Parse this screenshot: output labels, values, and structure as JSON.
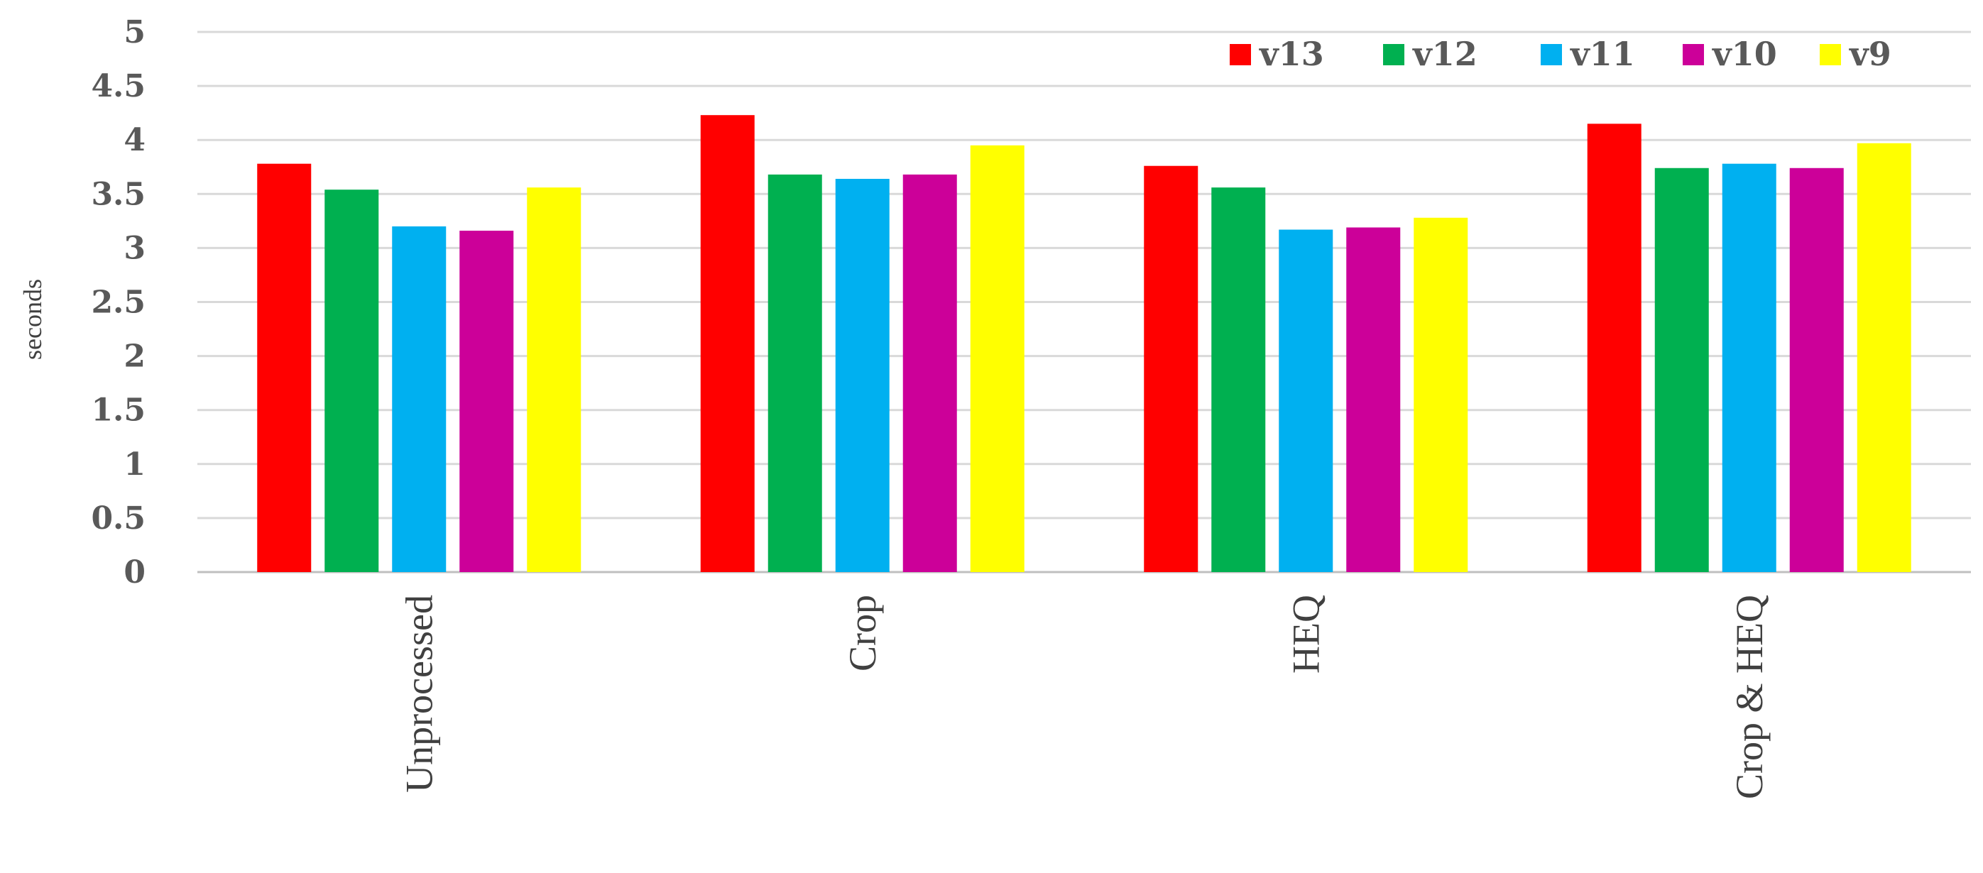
{
  "chart_data": {
    "type": "bar",
    "categories": [
      "Unprocessed",
      "Crop",
      "HEQ",
      "Crop & HEQ"
    ],
    "series": [
      {
        "name": "v13",
        "color": "#ff0000",
        "values": [
          3.78,
          4.23,
          3.76,
          4.15
        ]
      },
      {
        "name": "v12",
        "color": "#00b050",
        "values": [
          3.54,
          3.68,
          3.56,
          3.74
        ]
      },
      {
        "name": "v11",
        "color": "#00b0f0",
        "values": [
          3.2,
          3.64,
          3.17,
          3.78
        ]
      },
      {
        "name": "v10",
        "color": "#cc0099",
        "values": [
          3.16,
          3.68,
          3.19,
          3.74
        ]
      },
      {
        "name": "v9",
        "color": "#ffff00",
        "values": [
          3.56,
          3.95,
          3.28,
          3.97
        ]
      }
    ],
    "yticks": [
      "0",
      "0.5",
      "1",
      "1.5",
      "2",
      "2.5",
      "3",
      "3.5",
      "4",
      "4.5",
      "5"
    ],
    "ylim": [
      0,
      5
    ],
    "ylabel": "seconds",
    "xlabel": "",
    "title": "",
    "grid": true,
    "legend_position": "top-right"
  }
}
